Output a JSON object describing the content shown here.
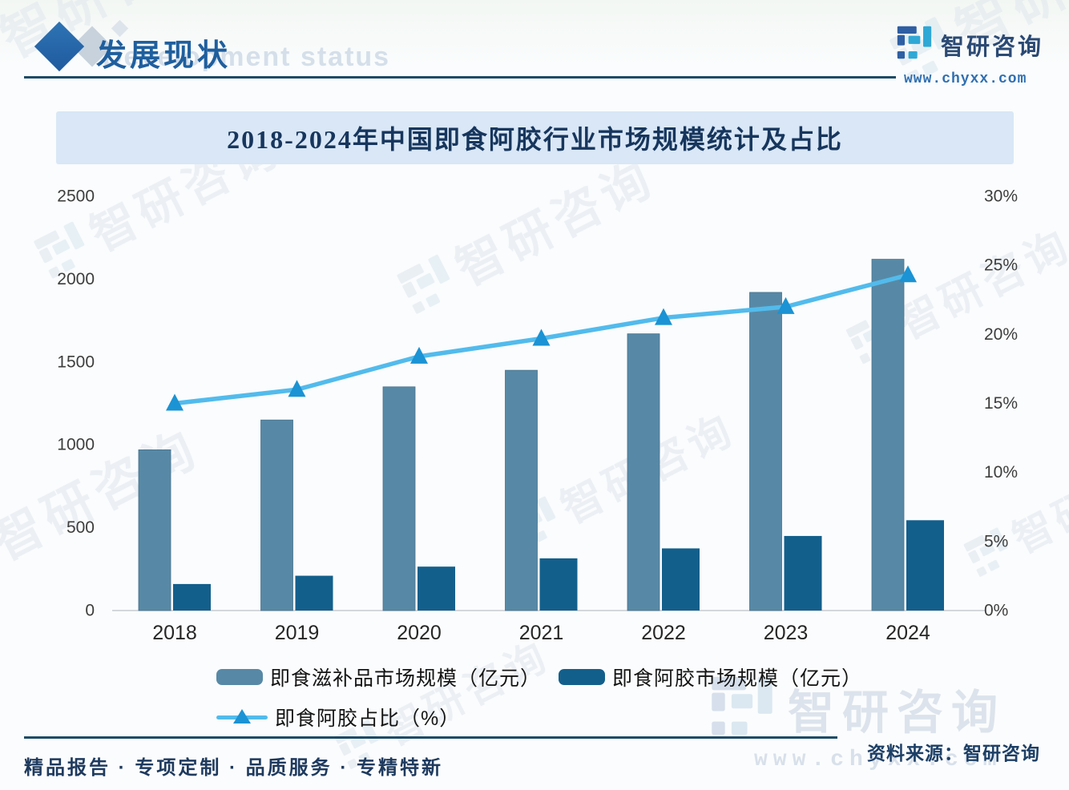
{
  "header": {
    "title": "发展现状",
    "title_watermark": "Development status",
    "logo_name": "智研咨询",
    "logo_url": "www.chyxx.com"
  },
  "banner": {
    "title": "2018-2024年中国即食阿胶行业市场规模统计及占比"
  },
  "chart_data": {
    "type": "bar",
    "title": "2018-2024年中国即食阿胶行业市场规模统计及占比",
    "categories": [
      "2018",
      "2019",
      "2020",
      "2021",
      "2022",
      "2023",
      "2024"
    ],
    "series": [
      {
        "name": "即食滋补品市场规模（亿元）",
        "type": "bar",
        "axis": "left",
        "color": "#5789a6",
        "values": [
          970,
          1150,
          1350,
          1450,
          1670,
          1920,
          2120
        ]
      },
      {
        "name": "即食阿胶市场规模（亿元）",
        "type": "bar",
        "axis": "left",
        "color": "#135f8c",
        "values": [
          160,
          210,
          265,
          315,
          375,
          450,
          545
        ]
      },
      {
        "name": "即食阿胶占比（%）",
        "type": "line",
        "axis": "right",
        "color": "#52bbec",
        "marker": "triangle-up",
        "marker_color": "#1b93d4",
        "values": [
          15.0,
          16.0,
          18.4,
          19.7,
          21.2,
          22.0,
          24.3
        ]
      }
    ],
    "left_axis": {
      "range": [
        0,
        2500
      ],
      "ticks": [
        0,
        500,
        1000,
        1500,
        2000,
        2500
      ]
    },
    "right_axis": {
      "range_pct": [
        0,
        30
      ],
      "ticks": [
        "0%",
        "5%",
        "10%",
        "15%",
        "20%",
        "25%",
        "30%"
      ]
    },
    "grid": false,
    "legend_position": "bottom"
  },
  "footer": {
    "tagline": "精品报告 · 专项定制 · 品质服务 · 专精特新",
    "source": "资料来源：智研咨询"
  },
  "watermark": {
    "brand": "智研咨询",
    "url": "www.chyxx.com"
  },
  "colors": {
    "bar_light": "#5789a6",
    "bar_dark": "#135f8c",
    "line": "#52bbec",
    "line_marker": "#1b93d4",
    "banner_bg": "#d9e7f6",
    "banner_text": "#17365d",
    "header_title": "#1f5f9e",
    "rule": "#1d4b66"
  }
}
